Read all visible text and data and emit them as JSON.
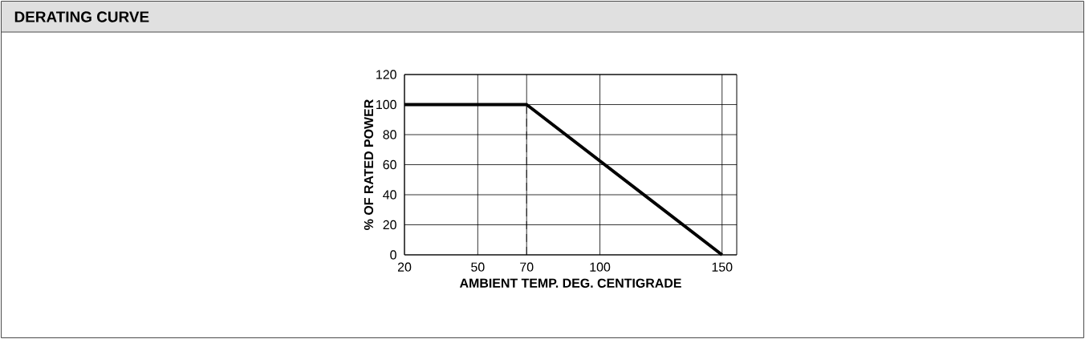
{
  "chart_data": {
    "type": "line",
    "title": "DERATING CURVE",
    "xlabel": "AMBIENT TEMP. DEG. CENTIGRADE",
    "ylabel": "% OF RATED POWER",
    "x": [
      20,
      70,
      150
    ],
    "series": [
      {
        "color": "#000000",
        "values": [
          100,
          100,
          0
        ]
      }
    ],
    "xlim": [
      20,
      156
    ],
    "xticks": [
      20,
      50,
      70,
      100,
      150
    ],
    "ylim": [
      0,
      120
    ],
    "yticks": [
      0,
      20,
      40,
      60,
      80,
      100,
      120
    ],
    "grid": true,
    "marker": "none",
    "line_style": "solid",
    "ref_lines": [
      {
        "axis": "x",
        "value": 70,
        "line_style": "dashed"
      }
    ]
  }
}
